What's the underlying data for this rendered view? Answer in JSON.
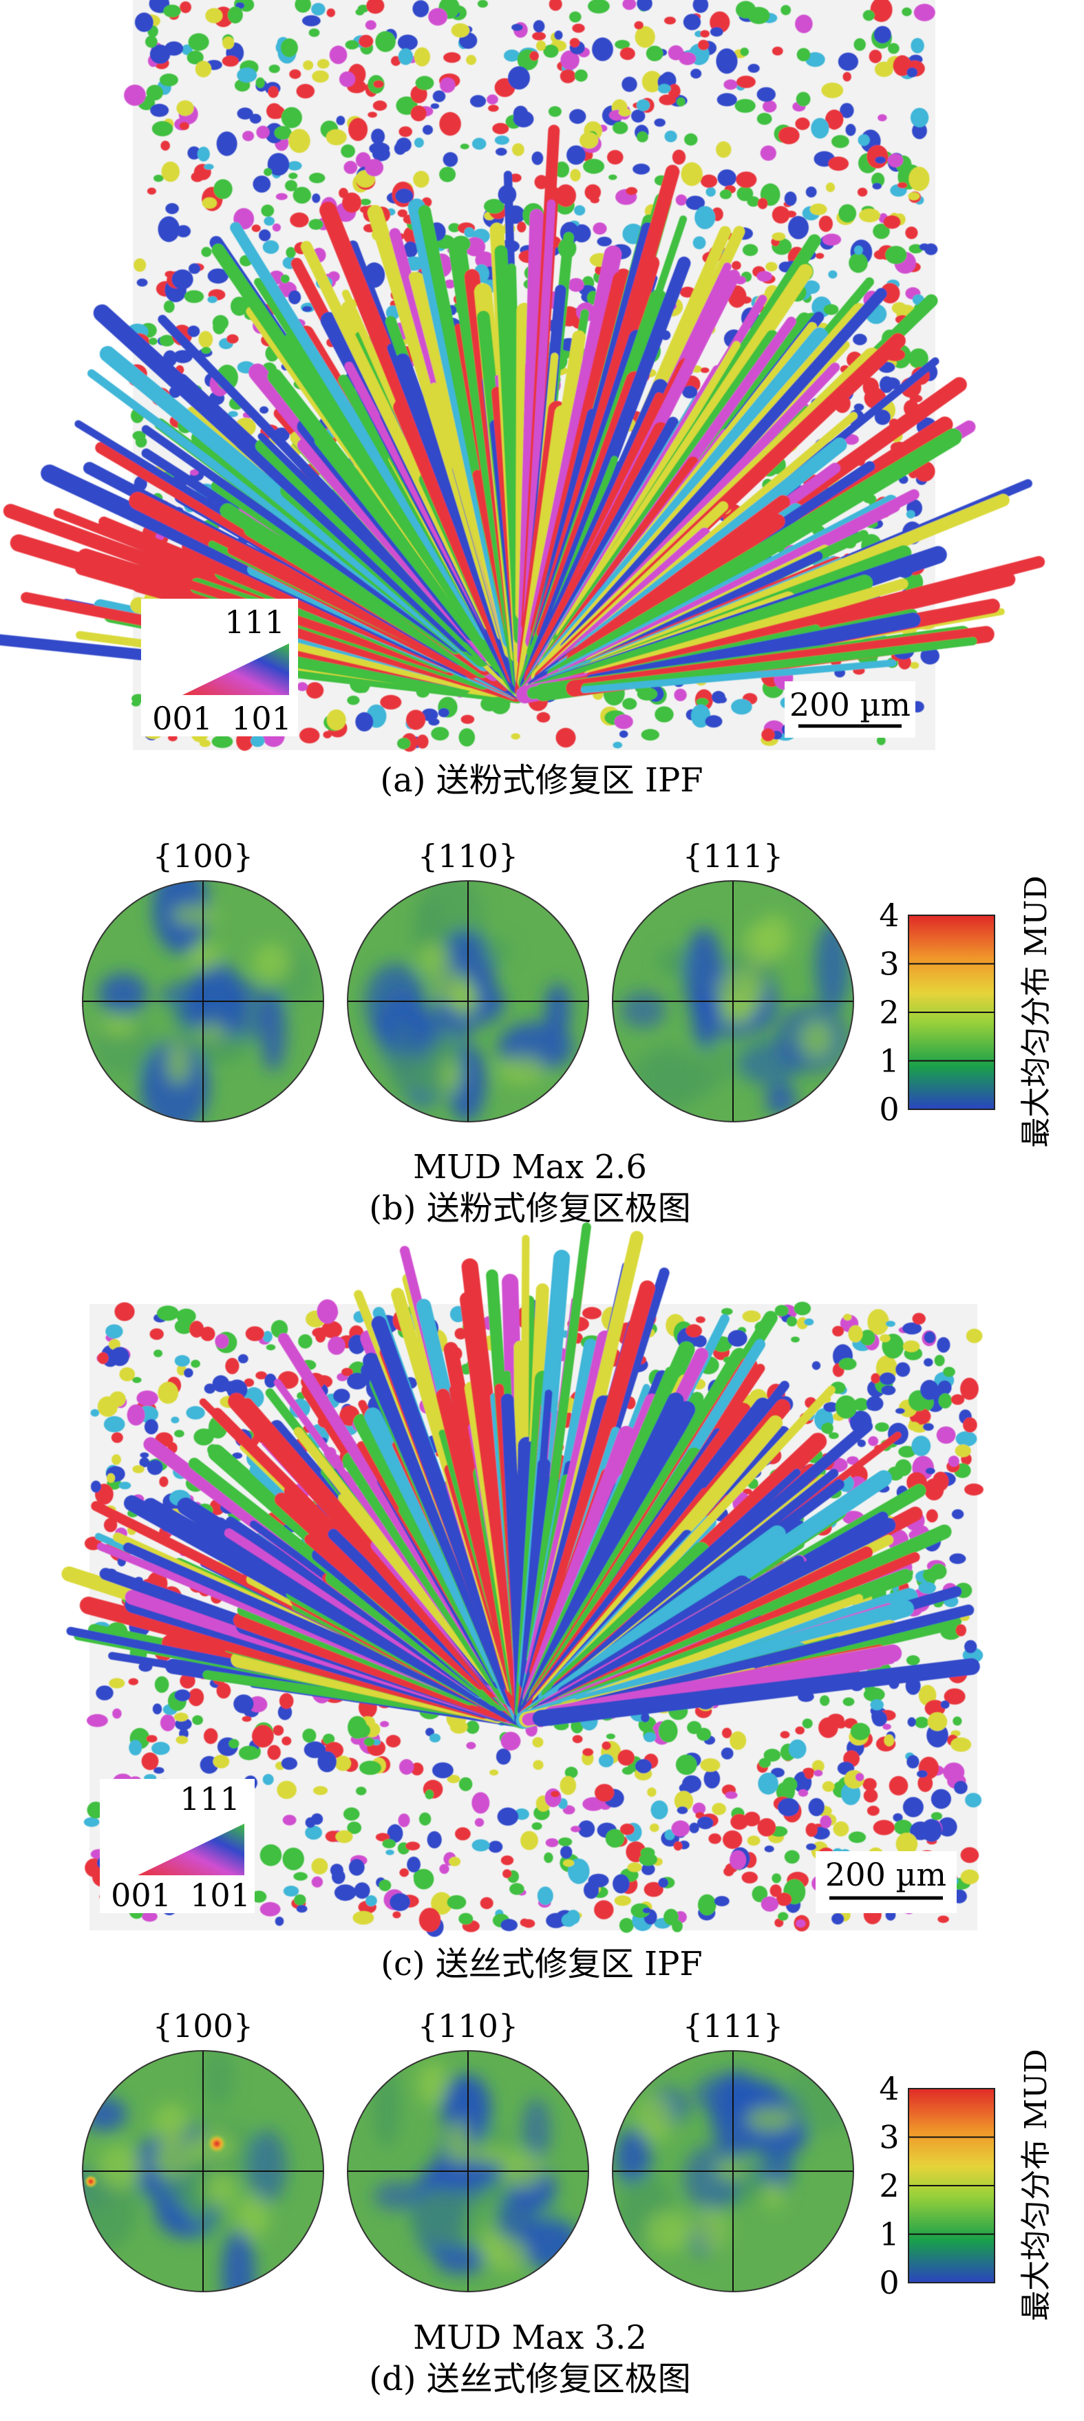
{
  "colors": {
    "ipf_red": "#e8343c",
    "ipf_green": "#3fbf3f",
    "ipf_blue": "#3348c9",
    "ipf_magenta": "#d04fd0",
    "ipf_cyan": "#3fb6d8",
    "ipf_yellow": "#d9d93a",
    "pf_base": "#5fae52",
    "pf_low": "#2456b8",
    "pf_high": "#e0e05a",
    "pf_peak": "#e4412c",
    "colorbar_stops": [
      "#2a44c0",
      "#1aa04a",
      "#9ad13a",
      "#e6d33a",
      "#f0962a",
      "#e02a28"
    ]
  },
  "panels": {
    "a": {
      "caption": "(a) 送粉式修复区 IPF",
      "scale_bar": "200 µm",
      "triangle_labels": {
        "top": "111",
        "left": "001",
        "right": "101"
      }
    },
    "b": {
      "poles": [
        "{100}",
        "{110}",
        "{111}"
      ],
      "max_label": "MUD Max 2.6",
      "caption": "(b) 送粉式修复区极图",
      "mud_max": 2.6,
      "colorbar": {
        "ticks": [
          "4",
          "3",
          "2",
          "1",
          "0"
        ],
        "label": "最大均匀分布 MUD"
      }
    },
    "c": {
      "caption": "(c) 送丝式修复区 IPF",
      "scale_bar": "200 µm",
      "triangle_labels": {
        "top": "111",
        "left": "001",
        "right": "101"
      }
    },
    "d": {
      "poles": [
        "{100}",
        "{110}",
        "{111}"
      ],
      "max_label": "MUD Max 3.2",
      "caption": "(d) 送丝式修复区极图",
      "mud_max": 3.2,
      "colorbar": {
        "ticks": [
          "4",
          "3",
          "2",
          "1",
          "0"
        ],
        "label": "最大均匀分布 MUD"
      }
    }
  }
}
